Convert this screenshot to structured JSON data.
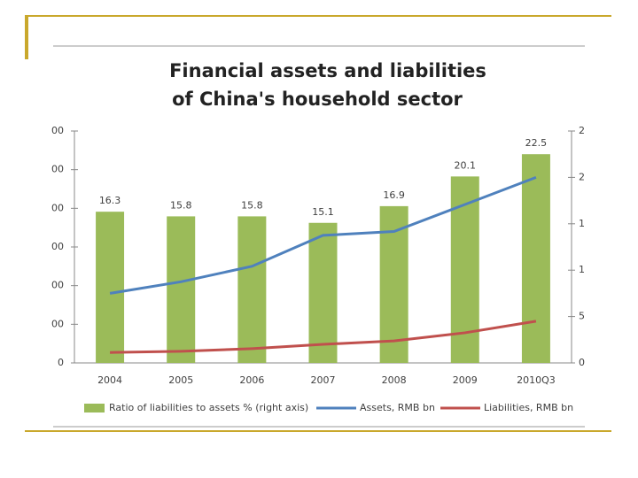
{
  "chart_data": {
    "type": "bar_line",
    "title": "Financial assets and liabilities",
    "subtitle": "of China's household sector",
    "categories": [
      "2004",
      "2005",
      "2006",
      "2007",
      "2008",
      "2009",
      "2010Q3"
    ],
    "series": [
      {
        "name": "Ratio of liabilities to assets % (right axis)",
        "type": "bar",
        "axis": "y2",
        "color": "#9bbb59",
        "values": [
          16.3,
          15.8,
          15.8,
          15.1,
          16.9,
          20.1,
          22.5
        ]
      },
      {
        "name": "Assets, RMB bn",
        "type": "line",
        "color": "#4f81bd",
        "values": [
          18000,
          21000,
          25000,
          33000,
          34000,
          41000,
          48000
        ]
      },
      {
        "name": "Liabilities, RMB bn",
        "type": "line",
        "color": "#c0504d",
        "values": [
          2700,
          3000,
          3700,
          4800,
          5700,
          7800,
          10800
        ]
      }
    ],
    "ylim": [
      0,
      60000
    ],
    "yticks": [
      0,
      {
        "value": 10000,
        "label": "00"
      },
      {
        "value": 20000,
        "label": "00"
      },
      {
        "value": 30000,
        "label": "00"
      },
      {
        "value": 40000,
        "label": "00"
      },
      {
        "value": 50000,
        "label": "00"
      },
      {
        "value": 60000,
        "label": "00"
      }
    ],
    "y2lim": [
      0,
      25
    ],
    "y2ticks": [
      0,
      5,
      {
        "value": 10,
        "label": "1"
      },
      {
        "value": 15,
        "label": "1"
      },
      {
        "value": 20,
        "label": "2"
      },
      {
        "value": 25,
        "label": "2"
      }
    ],
    "legend": "bottom"
  }
}
